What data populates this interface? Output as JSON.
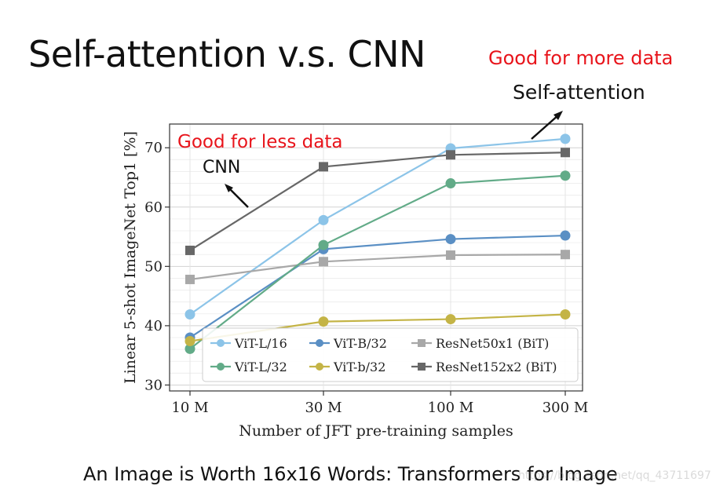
{
  "slide": {
    "title": "Self-attention v.s. CNN",
    "note_more": "Good for more data",
    "label_self_attention": "Self-attention",
    "note_less": "Good for less data",
    "label_cnn": "CNN",
    "caption": "An Image is Worth 16x16 Words: Transformers for Image",
    "watermark": "https://blog.csdn.net/qq_43711697"
  },
  "colors": {
    "accent_red": "#e8141b",
    "vit_l16": "#8cc4e8",
    "vit_b32": "#5a8fc4",
    "resnet50": "#a8a8a8",
    "vit_l32": "#62ab88",
    "vit_b32_small": "#c4b446",
    "resnet152": "#676767"
  },
  "chart_data": {
    "type": "line",
    "categories": [
      "10 M",
      "30 M",
      "100 M",
      "300 M"
    ],
    "xlabel": "Number of JFT pre-training samples",
    "ylabel": "Linear 5-shot ImageNet Top1 [%]",
    "ylim": [
      29,
      74
    ],
    "yticks": [
      30,
      40,
      50,
      60,
      70
    ],
    "grid": true,
    "legend_placement": "lower-right",
    "series": [
      {
        "name": "ViT-L/16",
        "values": [
          41.9,
          57.8,
          69.9,
          71.5
        ],
        "color": "#8cc4e8",
        "marker": "circle"
      },
      {
        "name": "ViT-B/32",
        "values": [
          38.0,
          52.9,
          54.6,
          55.2
        ],
        "color": "#5a8fc4",
        "marker": "circle"
      },
      {
        "name": "ResNet50x1 (BiT)",
        "values": [
          47.8,
          50.8,
          51.9,
          52.0
        ],
        "color": "#a8a8a8",
        "marker": "square"
      },
      {
        "name": "ViT-L/32",
        "values": [
          36.1,
          53.6,
          64.0,
          65.3
        ],
        "color": "#62ab88",
        "marker": "circle"
      },
      {
        "name": "ViT-b/32",
        "values": [
          37.4,
          40.7,
          41.1,
          41.9
        ],
        "color": "#c4b446",
        "marker": "circle"
      },
      {
        "name": "ResNet152x2 (BiT)",
        "values": [
          52.7,
          66.8,
          68.8,
          69.2
        ],
        "color": "#676767",
        "marker": "square"
      }
    ]
  }
}
